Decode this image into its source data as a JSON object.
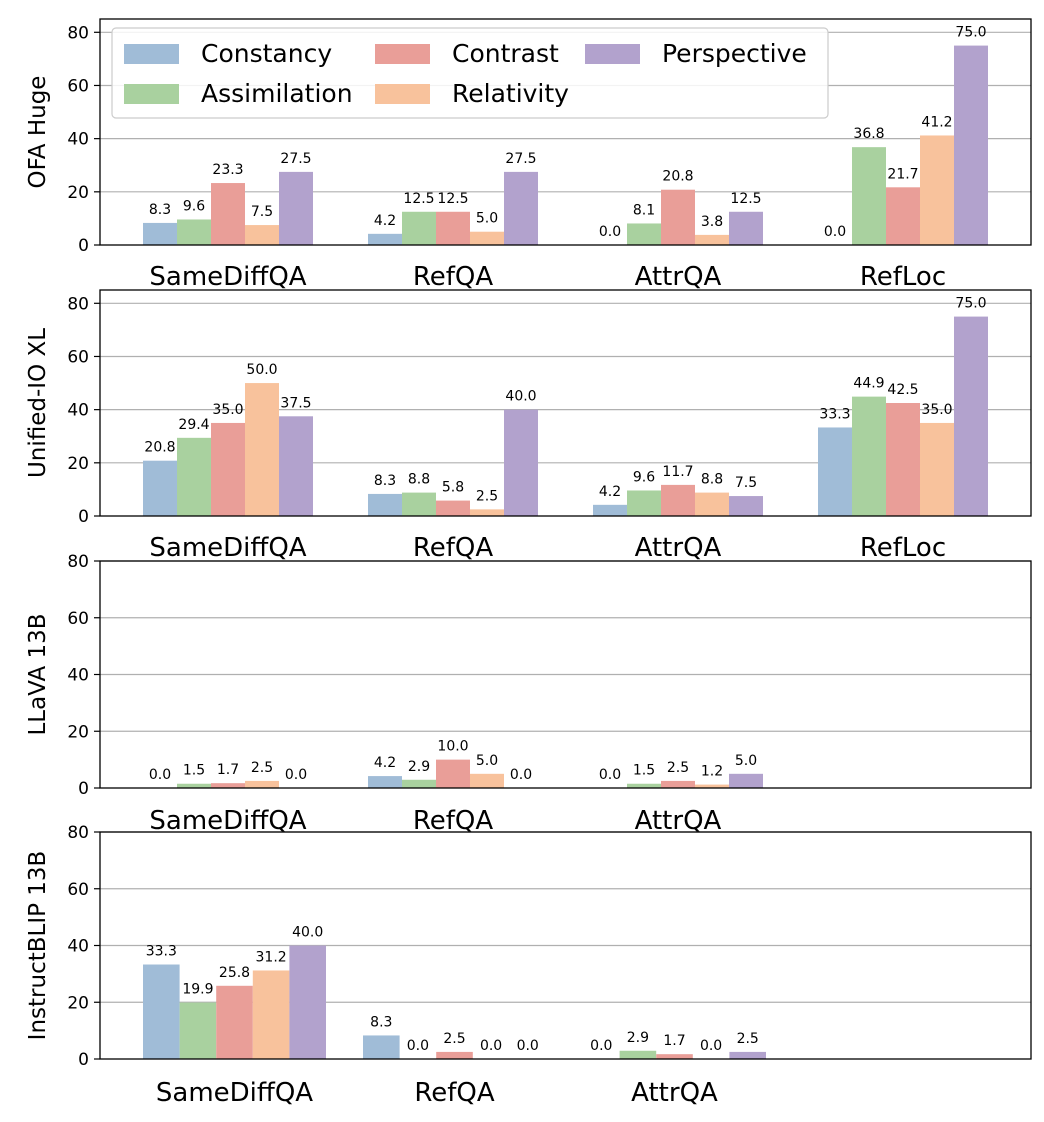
{
  "title": "",
  "colors": {
    "Constancy": "#a0bcd7",
    "Assimilation": "#a9d19f",
    "Contrast": "#e99e98",
    "Relativity": "#f8c29c",
    "Perspective": "#b2a2cd",
    "grid": "#b0b0b0",
    "axis": "#000000"
  },
  "legend": {
    "placement": "top-left of first panel",
    "entries": [
      "Constancy",
      "Contrast",
      "Perspective",
      "Assimilation",
      "Relativity"
    ]
  },
  "chart_data": [
    {
      "type": "bar",
      "ylabel": "OFA Huge",
      "ylim": [
        0,
        85
      ],
      "yticks": [
        0,
        20,
        40,
        60,
        80
      ],
      "grid": true,
      "categories": [
        "SameDiffQA",
        "RefQA",
        "AttrQA",
        "RefLoc"
      ],
      "series": [
        {
          "name": "Constancy",
          "values": [
            8.3,
            4.2,
            0.0,
            0.0
          ]
        },
        {
          "name": "Assimilation",
          "values": [
            9.6,
            12.5,
            8.1,
            36.8
          ]
        },
        {
          "name": "Contrast",
          "values": [
            23.3,
            12.5,
            20.8,
            21.7
          ]
        },
        {
          "name": "Relativity",
          "values": [
            7.5,
            5.0,
            3.8,
            41.2
          ]
        },
        {
          "name": "Perspective",
          "values": [
            27.5,
            27.5,
            12.5,
            75.0
          ]
        }
      ],
      "labels": [
        [
          "8.3",
          "4.2",
          "0.0",
          "0.0"
        ],
        [
          "9.6",
          "12.5",
          "8.1",
          "36.8"
        ],
        [
          "23.3",
          "12.5",
          "20.8",
          "21.7"
        ],
        [
          "7.5",
          "5.0",
          "3.8",
          "41.2"
        ],
        [
          "27.5",
          "27.5",
          "12.5",
          "75.0"
        ]
      ]
    },
    {
      "type": "bar",
      "ylabel": "Unified-IO XL",
      "ylim": [
        0,
        85
      ],
      "yticks": [
        0,
        20,
        40,
        60,
        80
      ],
      "grid": true,
      "categories": [
        "SameDiffQA",
        "RefQA",
        "AttrQA",
        "RefLoc"
      ],
      "series": [
        {
          "name": "Constancy",
          "values": [
            20.8,
            8.3,
            4.2,
            33.3
          ]
        },
        {
          "name": "Assimilation",
          "values": [
            29.4,
            8.8,
            9.6,
            44.9
          ]
        },
        {
          "name": "Contrast",
          "values": [
            35.0,
            5.8,
            11.7,
            42.5
          ]
        },
        {
          "name": "Relativity",
          "values": [
            50.0,
            2.5,
            8.8,
            35.0
          ]
        },
        {
          "name": "Perspective",
          "values": [
            37.5,
            40.0,
            7.5,
            75.0
          ]
        }
      ],
      "labels": [
        [
          "20.8",
          "8.3",
          "4.2",
          "33.3"
        ],
        [
          "29.4",
          "8.8",
          "9.6",
          "44.9"
        ],
        [
          "35.0",
          "5.8",
          "11.7",
          "42.5"
        ],
        [
          "50.0",
          "2.5",
          "8.8",
          "35.0"
        ],
        [
          "37.5",
          "40.0",
          "7.5",
          "75.0"
        ]
      ]
    },
    {
      "type": "bar",
      "ylabel": "LLaVA 13B",
      "ylim": [
        0,
        80
      ],
      "yticks": [
        0,
        20,
        40,
        60,
        80
      ],
      "grid": true,
      "categories": [
        "SameDiffQA",
        "RefQA",
        "AttrQA"
      ],
      "series": [
        {
          "name": "Constancy",
          "values": [
            0.0,
            4.2,
            0.0
          ]
        },
        {
          "name": "Assimilation",
          "values": [
            1.5,
            2.9,
            1.5
          ]
        },
        {
          "name": "Contrast",
          "values": [
            1.7,
            10.0,
            2.5
          ]
        },
        {
          "name": "Relativity",
          "values": [
            2.5,
            5.0,
            1.2
          ]
        },
        {
          "name": "Perspective",
          "values": [
            0.0,
            0.0,
            5.0
          ]
        }
      ],
      "labels": [
        [
          "0.0",
          "4.2",
          "0.0"
        ],
        [
          "1.5",
          "2.9",
          "1.5"
        ],
        [
          "1.7",
          "10.0",
          "2.5"
        ],
        [
          "2.5",
          "5.0",
          "1.2"
        ],
        [
          "0.0",
          "0.0",
          "5.0"
        ]
      ]
    },
    {
      "type": "bar",
      "ylabel": "InstructBLIP 13B",
      "ylim": [
        0,
        80
      ],
      "yticks": [
        0,
        20,
        40,
        60,
        80
      ],
      "grid": true,
      "categories": [
        "SameDiffQA",
        "RefQA",
        "AttrQA"
      ],
      "series": [
        {
          "name": "Constancy",
          "values": [
            33.3,
            8.3,
            0.0
          ]
        },
        {
          "name": "Assimilation",
          "values": [
            19.9,
            0.0,
            2.9
          ]
        },
        {
          "name": "Contrast",
          "values": [
            25.8,
            2.5,
            1.7
          ]
        },
        {
          "name": "Relativity",
          "values": [
            31.2,
            0.0,
            0.0
          ]
        },
        {
          "name": "Perspective",
          "values": [
            40.0,
            0.0,
            2.5
          ]
        }
      ],
      "labels": [
        [
          "33.3",
          "8.3",
          "0.0"
        ],
        [
          "19.9",
          "0.0",
          "2.9"
        ],
        [
          "25.8",
          "2.5",
          "1.7"
        ],
        [
          "31.2",
          "0.0",
          "0.0"
        ],
        [
          "40.0",
          "0.0",
          "2.5"
        ]
      ]
    }
  ]
}
